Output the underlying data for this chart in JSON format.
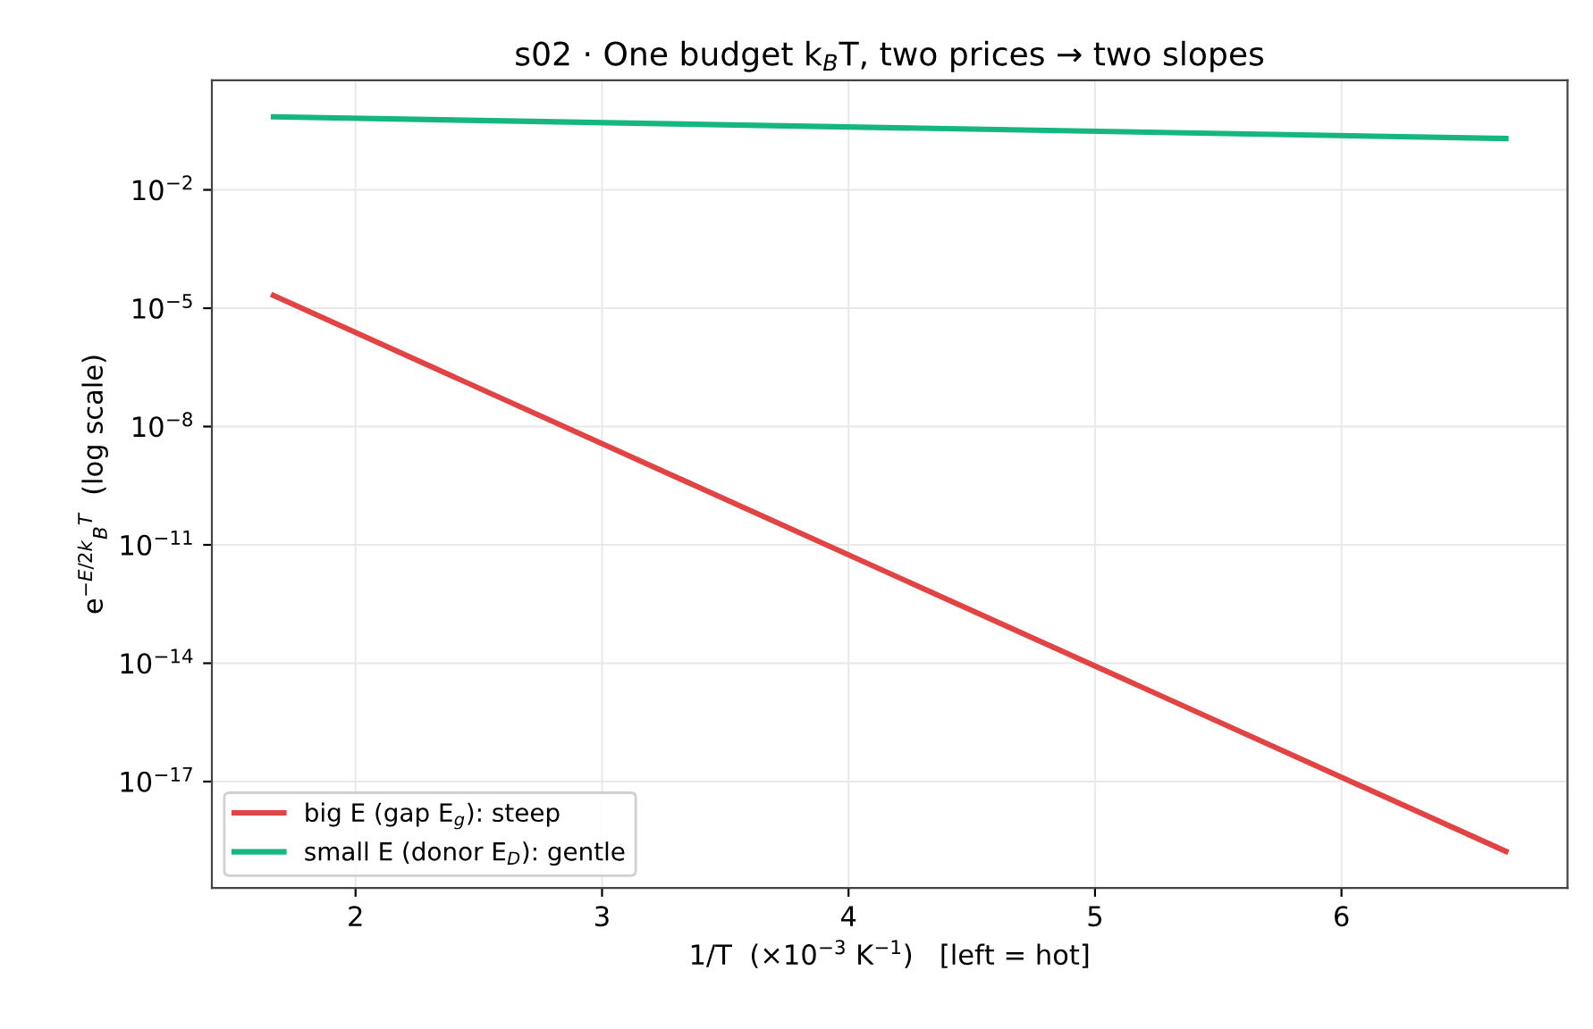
{
  "chart_data": {
    "type": "line",
    "title": "s02 · One budget k$_{B}$T, two prices → two slopes",
    "xlabel": "1/T  (×10$^{−3}$ K$^{−1}$)   [left = hot]",
    "ylabel": "e$^{−E/2k}$$_{B}$$^{T}$  (log scale)",
    "x": [
      1.667,
      6.667
    ],
    "series": [
      {
        "name": "big E (gap E$_{g}$): steep",
        "color": "#e04444",
        "values": [
          2.1e-05,
          1.7e-19
        ]
      },
      {
        "name": "small E (donor E$_{D}$): gentle",
        "color": "#16b77e",
        "values": [
          0.71,
          0.2
        ]
      }
    ],
    "log": "y",
    "xlim": [
      1.417,
      6.917
    ],
    "xticks": [
      2,
      3,
      4,
      5,
      6
    ],
    "ylim": [
      2e-20,
      6
    ],
    "yticks": [
      {
        "value": 0.01,
        "label": "10$^{−2}$"
      },
      {
        "value": 1e-05,
        "label": "10$^{−5}$"
      },
      {
        "value": 1e-08,
        "label": "10$^{−8}$"
      },
      {
        "value": 1e-11,
        "label": "10$^{−11}$"
      },
      {
        "value": 1e-14,
        "label": "10$^{−14}$"
      },
      {
        "value": 1e-17,
        "label": "10$^{−17}$"
      }
    ],
    "grid": true,
    "legend": "lower left",
    "marker": "none",
    "line_style": "solid"
  }
}
